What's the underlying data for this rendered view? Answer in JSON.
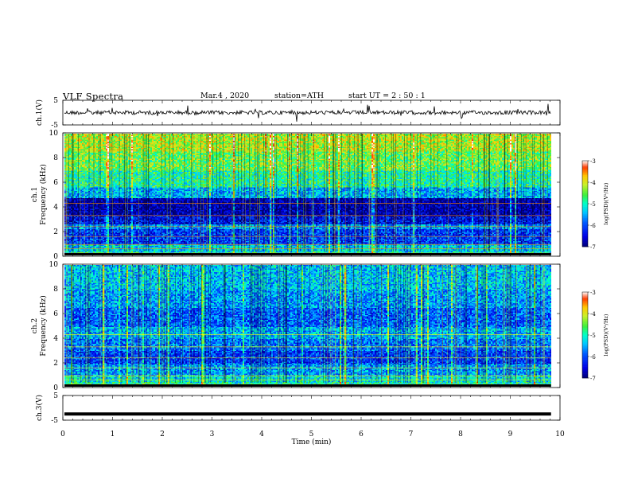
{
  "header": {
    "title": "VLF  Spectra",
    "date": "Mar.4  , 2020",
    "station": "station=ATH",
    "start": "start  UT  =   2  : 50 : 1"
  },
  "chart_data": [
    {
      "type": "line",
      "panel": "ch1-waveform",
      "ylabel": "ch.1(V)",
      "ylim": [
        -5,
        5
      ],
      "yticks": [
        "5",
        "-5"
      ],
      "xlim": [
        0,
        10
      ],
      "series": [
        {
          "approx_level": 0.0,
          "noise_amplitude": 1.0
        }
      ]
    },
    {
      "type": "heatmap",
      "panel": "ch1-spectrogram",
      "ylabel_lines": [
        "ch.1",
        "Frequency  (kHz)"
      ],
      "ylim": [
        0,
        10
      ],
      "yticks": [
        "0",
        "2",
        "4",
        "6",
        "8",
        "10"
      ],
      "xlim": [
        0,
        10
      ],
      "data_end_min": 9.82,
      "bands_log_psd": [
        {
          "f": [
            0.0,
            0.45
          ],
          "v": -5.1
        },
        {
          "f": [
            0.45,
            1.0
          ],
          "v": -5.3
        },
        {
          "f": [
            1.0,
            2.2
          ],
          "v": -6.1
        },
        {
          "f": [
            2.2,
            2.6
          ],
          "v": -5.6
        },
        {
          "f": [
            2.6,
            3.3
          ],
          "v": -6.4
        },
        {
          "f": [
            3.3,
            4.8
          ],
          "v": -6.8
        },
        {
          "f": [
            4.8,
            5.6
          ],
          "v": -5.5
        },
        {
          "f": [
            5.6,
            7.0
          ],
          "v": -4.9
        },
        {
          "f": [
            7.0,
            8.5
          ],
          "v": -4.5
        },
        {
          "f": [
            8.5,
            10.0
          ],
          "v": -4.2
        }
      ],
      "colorbar": {
        "label": "log(PSD)(V²/Hz)",
        "range": [
          -7,
          -3
        ],
        "ticks": [
          "-3",
          "-4",
          "-5",
          "-6",
          "-7"
        ]
      }
    },
    {
      "type": "heatmap",
      "panel": "ch2-spectrogram",
      "ylabel_lines": [
        "ch.2",
        "Frequency  (kHz)"
      ],
      "ylim": [
        0,
        10
      ],
      "yticks": [
        "0",
        "2",
        "4",
        "6",
        "8",
        "10"
      ],
      "xlim": [
        0,
        10
      ],
      "data_end_min": 9.82,
      "bands_log_psd": [
        {
          "f": [
            0.0,
            0.5
          ],
          "v": -5.0
        },
        {
          "f": [
            0.5,
            1.0
          ],
          "v": -5.2
        },
        {
          "f": [
            1.0,
            2.0
          ],
          "v": -5.6
        },
        {
          "f": [
            2.0,
            3.0
          ],
          "v": -6.1
        },
        {
          "f": [
            3.0,
            4.0
          ],
          "v": -5.8
        },
        {
          "f": [
            4.0,
            5.0
          ],
          "v": -5.5
        },
        {
          "f": [
            5.0,
            6.5
          ],
          "v": -5.9
        },
        {
          "f": [
            6.5,
            8.0
          ],
          "v": -5.6
        },
        {
          "f": [
            8.0,
            10.0
          ],
          "v": -5.4
        }
      ],
      "colorbar": {
        "label": "log(PSD)(V²/Hz)",
        "range": [
          -7,
          -3
        ],
        "ticks": [
          "-3",
          "-4",
          "-5",
          "-6",
          "-7"
        ]
      }
    },
    {
      "type": "line",
      "panel": "ch3-waveform",
      "ylabel": "ch.3(V)",
      "ylim": [
        -5,
        5
      ],
      "yticks": [
        "5",
        "-5"
      ],
      "xlim": [
        0,
        10
      ],
      "xlabel": "Time  (min)",
      "xticks": [
        "0",
        "1",
        "2",
        "3",
        "4",
        "5",
        "6",
        "7",
        "8",
        "9",
        "10"
      ],
      "series": [
        {
          "approx_level": -2.5,
          "noise_amplitude": 0.2
        }
      ]
    }
  ]
}
